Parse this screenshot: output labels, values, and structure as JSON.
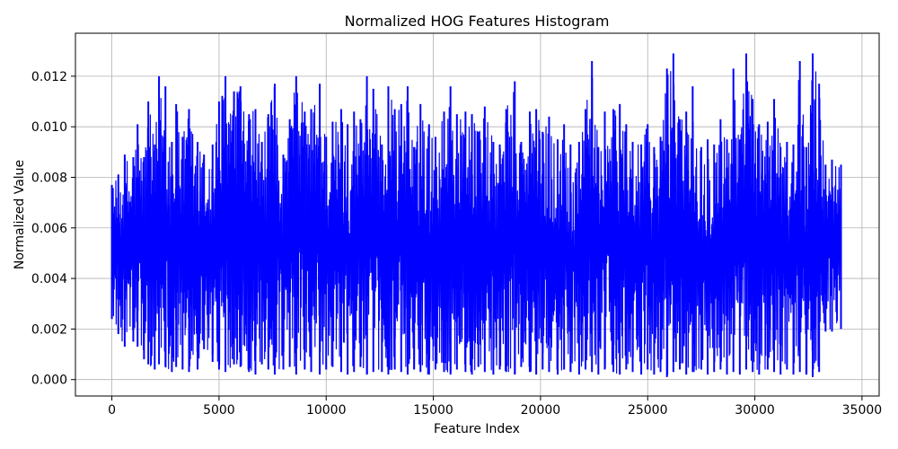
{
  "chart_data": {
    "type": "line",
    "title": "Normalized HOG Features Histogram",
    "xlabel": "Feature Index",
    "ylabel": "Normalized Value",
    "xlim": [
      -1700,
      35800
    ],
    "ylim": [
      -0.00065,
      0.0137
    ],
    "xticks": [
      0,
      5000,
      10000,
      15000,
      20000,
      25000,
      30000,
      35000
    ],
    "xtick_labels": [
      "0",
      "5000",
      "10000",
      "15000",
      "20000",
      "25000",
      "30000",
      "35000"
    ],
    "yticks": [
      0.0,
      0.002,
      0.004,
      0.006,
      0.008,
      0.01,
      0.012
    ],
    "ytick_labels": [
      "0.000",
      "0.002",
      "0.004",
      "0.006",
      "0.008",
      "0.010",
      "0.012"
    ],
    "grid": true,
    "series": [
      {
        "color": "#0000ff",
        "x_range": [
          0,
          34020
        ],
        "envelope": {
          "x": [
            0,
            300,
            600,
            1000,
            1200,
            1500,
            1700,
            2000,
            2200,
            2500,
            2800,
            3000,
            3300,
            3600,
            4000,
            4300,
            4700,
            5000,
            5300,
            5700,
            6000,
            6400,
            6700,
            7000,
            7300,
            7600,
            8000,
            8300,
            8600,
            9000,
            9300,
            9700,
            10000,
            10300,
            10700,
            11000,
            11300,
            11600,
            11900,
            12200,
            12600,
            12900,
            13200,
            13500,
            13800,
            14100,
            14400,
            14800,
            15100,
            15500,
            15800,
            16100,
            16500,
            16800,
            17100,
            17400,
            17800,
            18100,
            18400,
            18800,
            19100,
            19500,
            19800,
            20100,
            20400,
            20800,
            21100,
            21400,
            21800,
            22100,
            22400,
            22700,
            23000,
            23400,
            23700,
            24000,
            24300,
            24700,
            25000,
            25300,
            25600,
            25900,
            26200,
            26500,
            26800,
            27100,
            27500,
            27800,
            28100,
            28400,
            28700,
            29000,
            29300,
            29600,
            29900,
            30200,
            30600,
            30900,
            31200,
            31500,
            31800,
            32100,
            32400,
            32700,
            33000,
            33300,
            33600,
            34020
          ],
          "max": [
            0.0077,
            0.0081,
            0.0089,
            0.0088,
            0.0101,
            0.0088,
            0.011,
            0.0093,
            0.012,
            0.0116,
            0.0094,
            0.0109,
            0.0096,
            0.0107,
            0.0094,
            0.0089,
            0.0093,
            0.011,
            0.012,
            0.0114,
            0.0116,
            0.0105,
            0.0107,
            0.0094,
            0.0105,
            0.0117,
            0.0089,
            0.0103,
            0.012,
            0.0106,
            0.0107,
            0.0117,
            0.0096,
            0.0102,
            0.0107,
            0.0101,
            0.0106,
            0.0103,
            0.012,
            0.0115,
            0.0093,
            0.0116,
            0.0107,
            0.0109,
            0.0116,
            0.0092,
            0.0109,
            0.0101,
            0.0096,
            0.0106,
            0.0116,
            0.0105,
            0.0106,
            0.0105,
            0.0098,
            0.0108,
            0.0094,
            0.0093,
            0.0107,
            0.0118,
            0.0094,
            0.0106,
            0.0107,
            0.0098,
            0.0104,
            0.0095,
            0.0101,
            0.0093,
            0.0094,
            0.0107,
            0.0126,
            0.0092,
            0.0106,
            0.0107,
            0.0109,
            0.0101,
            0.0094,
            0.0093,
            0.0101,
            0.0092,
            0.0096,
            0.0123,
            0.0129,
            0.0103,
            0.0106,
            0.0116,
            0.0092,
            0.0095,
            0.0093,
            0.0103,
            0.0095,
            0.0123,
            0.0095,
            0.0129,
            0.0111,
            0.0101,
            0.0102,
            0.0111,
            0.0092,
            0.0094,
            0.0093,
            0.0126,
            0.0092,
            0.0129,
            0.0117,
            0.0085,
            0.0087,
            0.0085
          ],
          "min": [
            0.0024,
            0.0018,
            0.0013,
            0.0015,
            0.0013,
            0.0008,
            0.0006,
            0.0004,
            0.0006,
            0.0005,
            0.0003,
            0.0005,
            0.0004,
            0.0003,
            0.0004,
            0.0012,
            0.0007,
            0.0004,
            0.0003,
            0.0006,
            0.0005,
            0.0003,
            0.0002,
            0.0006,
            0.0004,
            0.0002,
            0.0004,
            0.0005,
            0.0002,
            0.0004,
            0.0003,
            0.0002,
            0.0004,
            0.0005,
            0.0003,
            0.0002,
            0.0003,
            0.0005,
            0.0002,
            0.0003,
            0.0003,
            0.0002,
            0.0004,
            0.0003,
            0.0002,
            0.0004,
            0.0003,
            0.0002,
            0.0004,
            0.0003,
            0.0002,
            0.0004,
            0.0003,
            0.0002,
            0.0005,
            0.0003,
            0.0002,
            0.0004,
            0.0003,
            0.0002,
            0.0005,
            0.0003,
            0.0002,
            0.0004,
            0.0003,
            0.0002,
            0.0004,
            0.0003,
            0.0002,
            0.0004,
            0.0003,
            0.0002,
            0.0004,
            0.0003,
            0.0002,
            0.0004,
            0.0003,
            0.0002,
            0.0004,
            0.0002,
            0.0003,
            0.0001,
            0.0003,
            0.0004,
            0.0002,
            0.0003,
            0.0004,
            0.0002,
            0.0003,
            0.0004,
            0.0002,
            0.0003,
            0.0002,
            0.0004,
            0.0003,
            0.0002,
            0.0004,
            0.0003,
            0.0002,
            0.0004,
            0.0002,
            0.0003,
            0.0002,
            0.0001,
            0.0003,
            0.0019,
            0.0019,
            0.002
          ]
        }
      }
    ]
  }
}
